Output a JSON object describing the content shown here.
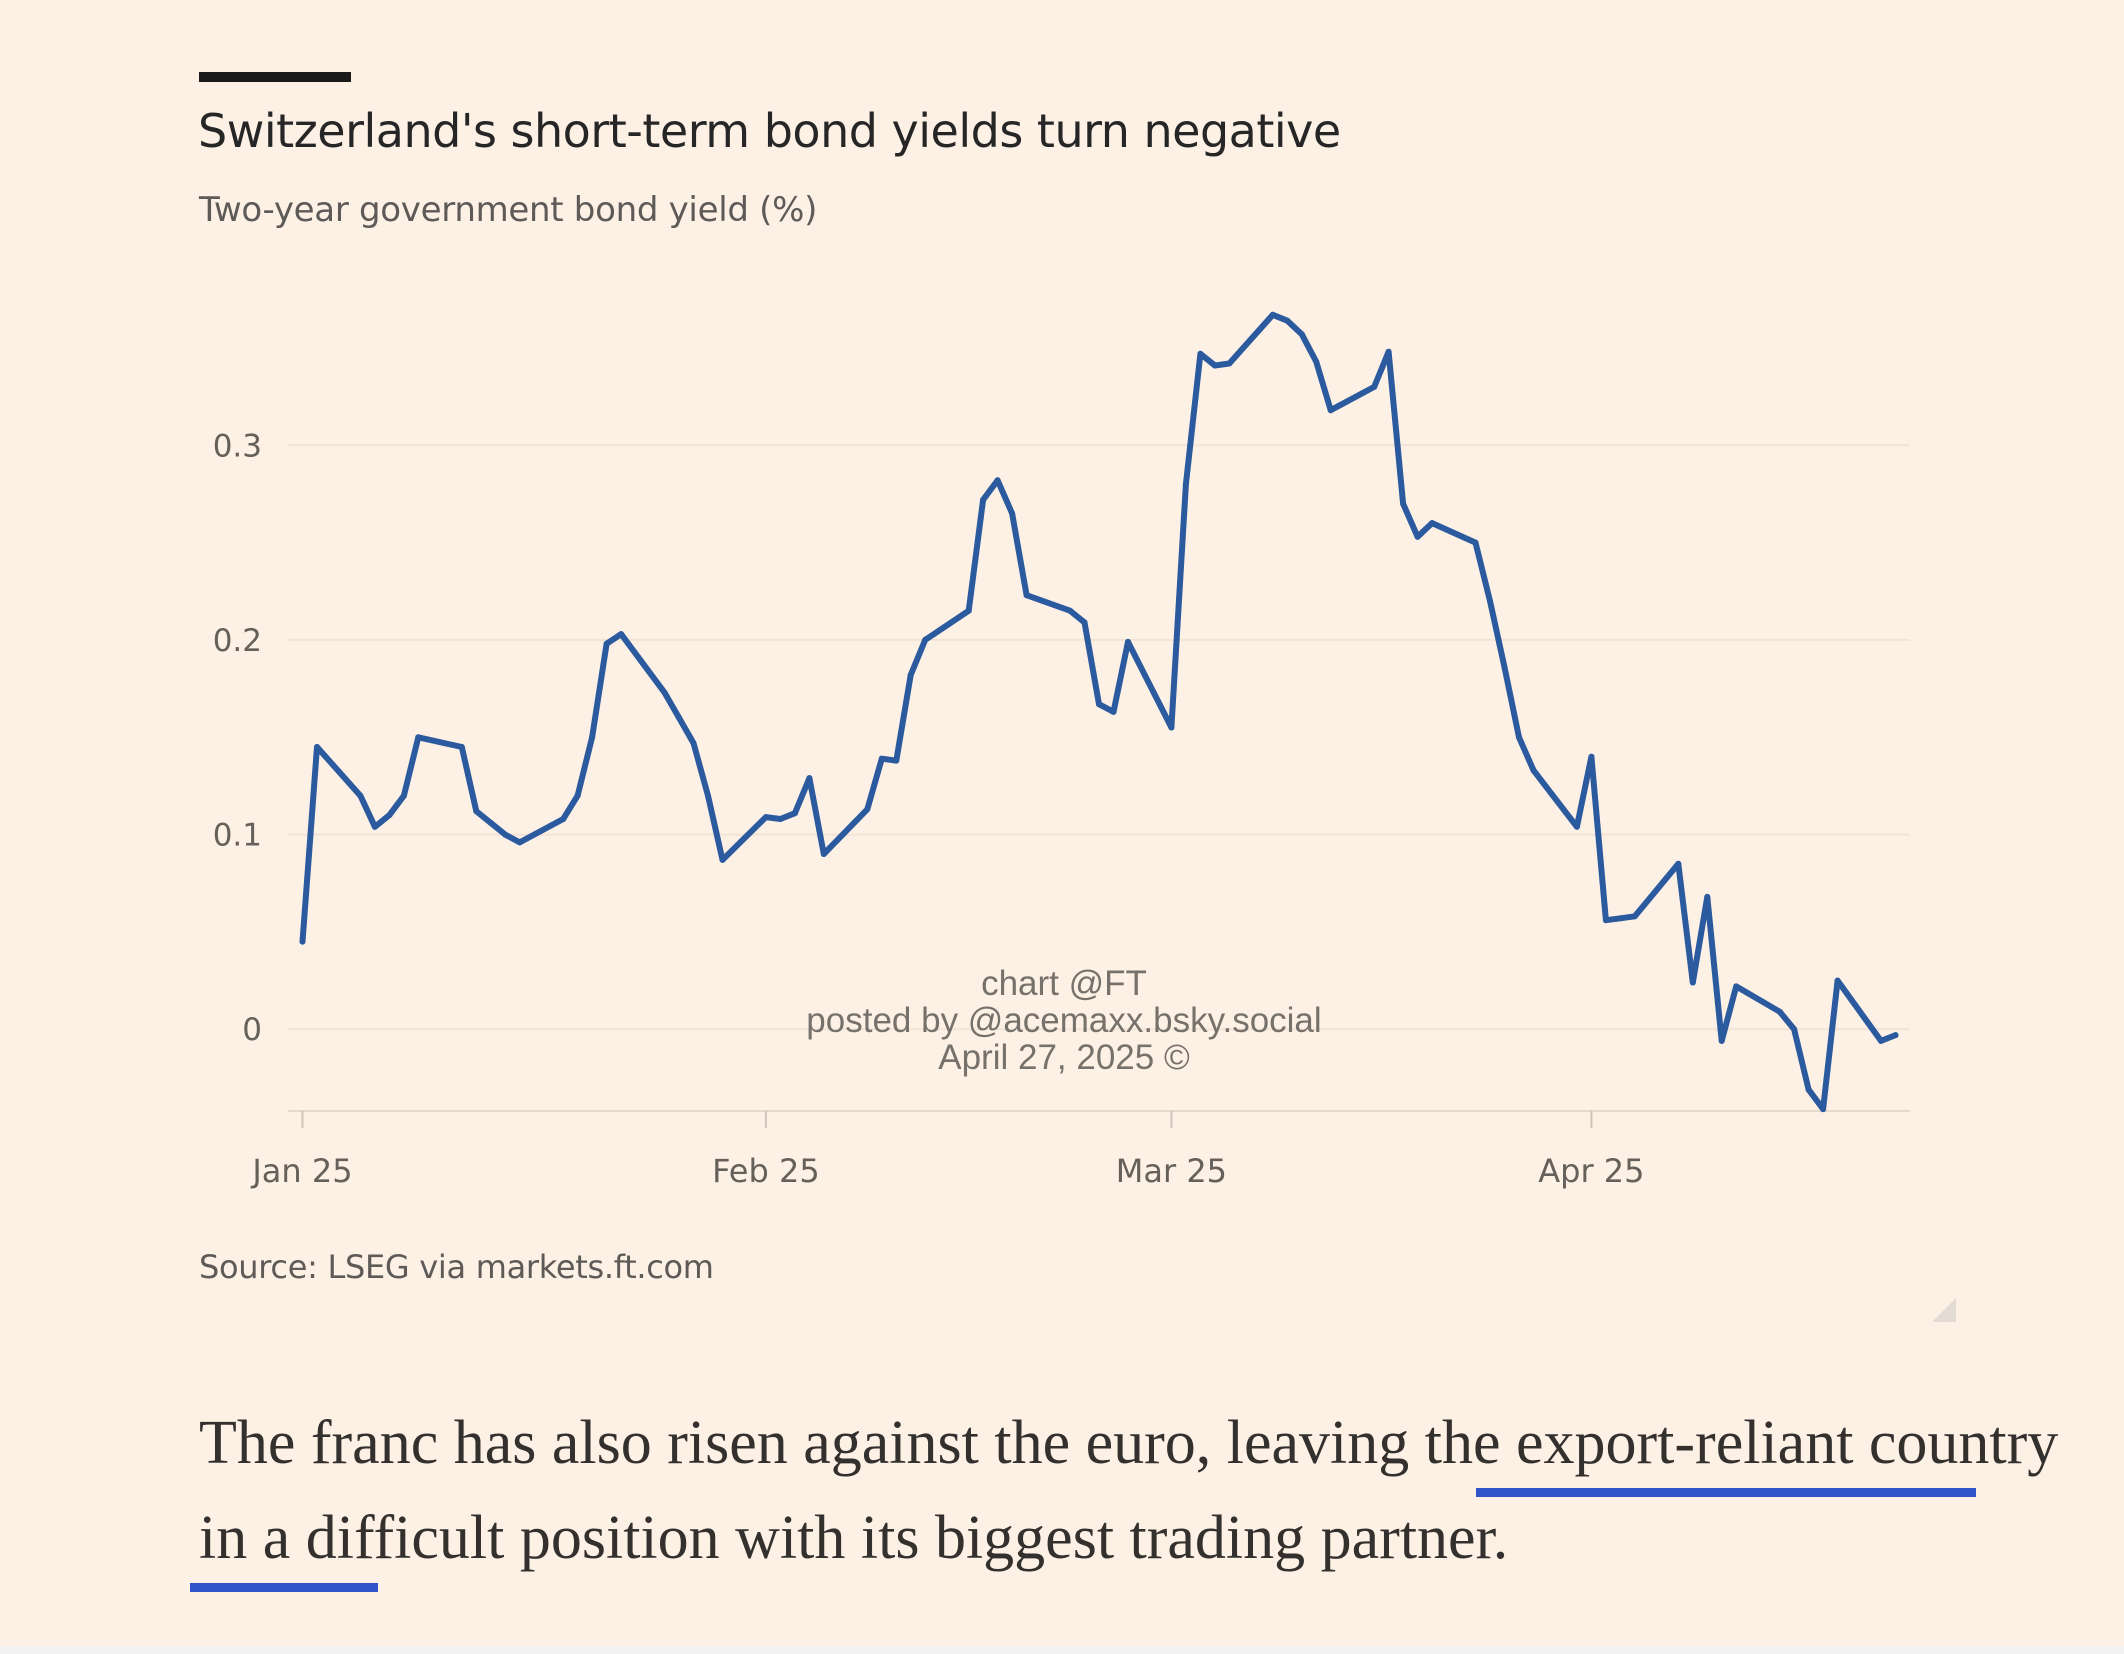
{
  "chart_data": {
    "type": "line",
    "title": "Switzerland's short-term bond yields turn negative",
    "subtitle": "Two-year government bond yield (%)",
    "source": "Source: LSEG via markets.ft.com",
    "xlabel": "",
    "ylabel": "",
    "ylim": [
      -0.042,
      0.37
    ],
    "y_ticks": [
      0,
      0.1,
      0.2,
      0.3
    ],
    "y_tick_labels": [
      "0",
      "0.1",
      "0.2",
      "0.3"
    ],
    "x_ticks": [
      "2025-01-02",
      "2025-02-03",
      "2025-03-03",
      "2025-04-01"
    ],
    "x_tick_labels": [
      "Jan 25",
      "Feb 25",
      "Mar 25",
      "Apr 25"
    ],
    "grid": true,
    "series": [
      {
        "color": "#2b5a9e",
        "points": [
          [
            "2025-01-02",
            0.045
          ],
          [
            "2025-01-03",
            0.145
          ],
          [
            "2025-01-06",
            0.12
          ],
          [
            "2025-01-07",
            0.104
          ],
          [
            "2025-01-08",
            0.11
          ],
          [
            "2025-01-09",
            0.12
          ],
          [
            "2025-01-10",
            0.15
          ],
          [
            "2025-01-13",
            0.145
          ],
          [
            "2025-01-14",
            0.112
          ],
          [
            "2025-01-15",
            0.106
          ],
          [
            "2025-01-16",
            0.1
          ],
          [
            "2025-01-17",
            0.096
          ],
          [
            "2025-01-20",
            0.108
          ],
          [
            "2025-01-21",
            0.12
          ],
          [
            "2025-01-22",
            0.15
          ],
          [
            "2025-01-23",
            0.198
          ],
          [
            "2025-01-24",
            0.203
          ],
          [
            "2025-01-27",
            0.173
          ],
          [
            "2025-01-28",
            0.16
          ],
          [
            "2025-01-29",
            0.147
          ],
          [
            "2025-01-30",
            0.12
          ],
          [
            "2025-01-31",
            0.087
          ],
          [
            "2025-02-03",
            0.109
          ],
          [
            "2025-02-04",
            0.108
          ],
          [
            "2025-02-05",
            0.111
          ],
          [
            "2025-02-06",
            0.129
          ],
          [
            "2025-02-07",
            0.09
          ],
          [
            "2025-02-10",
            0.113
          ],
          [
            "2025-02-11",
            0.139
          ],
          [
            "2025-02-12",
            0.138
          ],
          [
            "2025-02-13",
            0.182
          ],
          [
            "2025-02-14",
            0.2
          ],
          [
            "2025-02-17",
            0.215
          ],
          [
            "2025-02-18",
            0.272
          ],
          [
            "2025-02-19",
            0.282
          ],
          [
            "2025-02-20",
            0.265
          ],
          [
            "2025-02-21",
            0.223
          ],
          [
            "2025-02-24",
            0.215
          ],
          [
            "2025-02-25",
            0.209
          ],
          [
            "2025-02-26",
            0.167
          ],
          [
            "2025-02-27",
            0.163
          ],
          [
            "2025-02-28",
            0.199
          ],
          [
            "2025-03-03",
            0.155
          ],
          [
            "2025-03-04",
            0.28
          ],
          [
            "2025-03-05",
            0.347
          ],
          [
            "2025-03-06",
            0.341
          ],
          [
            "2025-03-07",
            0.342
          ],
          [
            "2025-03-10",
            0.367
          ],
          [
            "2025-03-11",
            0.364
          ],
          [
            "2025-03-12",
            0.357
          ],
          [
            "2025-03-13",
            0.343
          ],
          [
            "2025-03-14",
            0.318
          ],
          [
            "2025-03-17",
            0.33
          ],
          [
            "2025-03-18",
            0.348
          ],
          [
            "2025-03-19",
            0.27
          ],
          [
            "2025-03-20",
            0.253
          ],
          [
            "2025-03-21",
            0.26
          ],
          [
            "2025-03-24",
            0.25
          ],
          [
            "2025-03-25",
            0.22
          ],
          [
            "2025-03-26",
            0.186
          ],
          [
            "2025-03-27",
            0.15
          ],
          [
            "2025-03-28",
            0.133
          ],
          [
            "2025-03-31",
            0.104
          ],
          [
            "2025-04-01",
            0.14
          ],
          [
            "2025-04-02",
            0.056
          ],
          [
            "2025-04-03",
            0.057
          ],
          [
            "2025-04-04",
            0.058
          ],
          [
            "2025-04-07",
            0.085
          ],
          [
            "2025-04-08",
            0.024
          ],
          [
            "2025-04-09",
            0.068
          ],
          [
            "2025-04-10",
            -0.006
          ],
          [
            "2025-04-11",
            0.022
          ],
          [
            "2025-04-14",
            0.009
          ],
          [
            "2025-04-15",
            0.0
          ],
          [
            "2025-04-16",
            -0.031
          ],
          [
            "2025-04-17",
            -0.041
          ],
          [
            "2025-04-18",
            0.025
          ],
          [
            "2025-04-21",
            -0.006
          ],
          [
            "2025-04-22",
            -0.003
          ]
        ]
      }
    ]
  },
  "watermark": {
    "line1": "chart @FT",
    "line2": "posted by @acemaxx.bsky.social",
    "line3": "April 27, 2025 ©"
  },
  "article": {
    "text": "The franc has also risen against the euro, leaving the export-reliant country in a difficult position with its biggest trading partner.",
    "underline_color": "#2f55c8"
  }
}
